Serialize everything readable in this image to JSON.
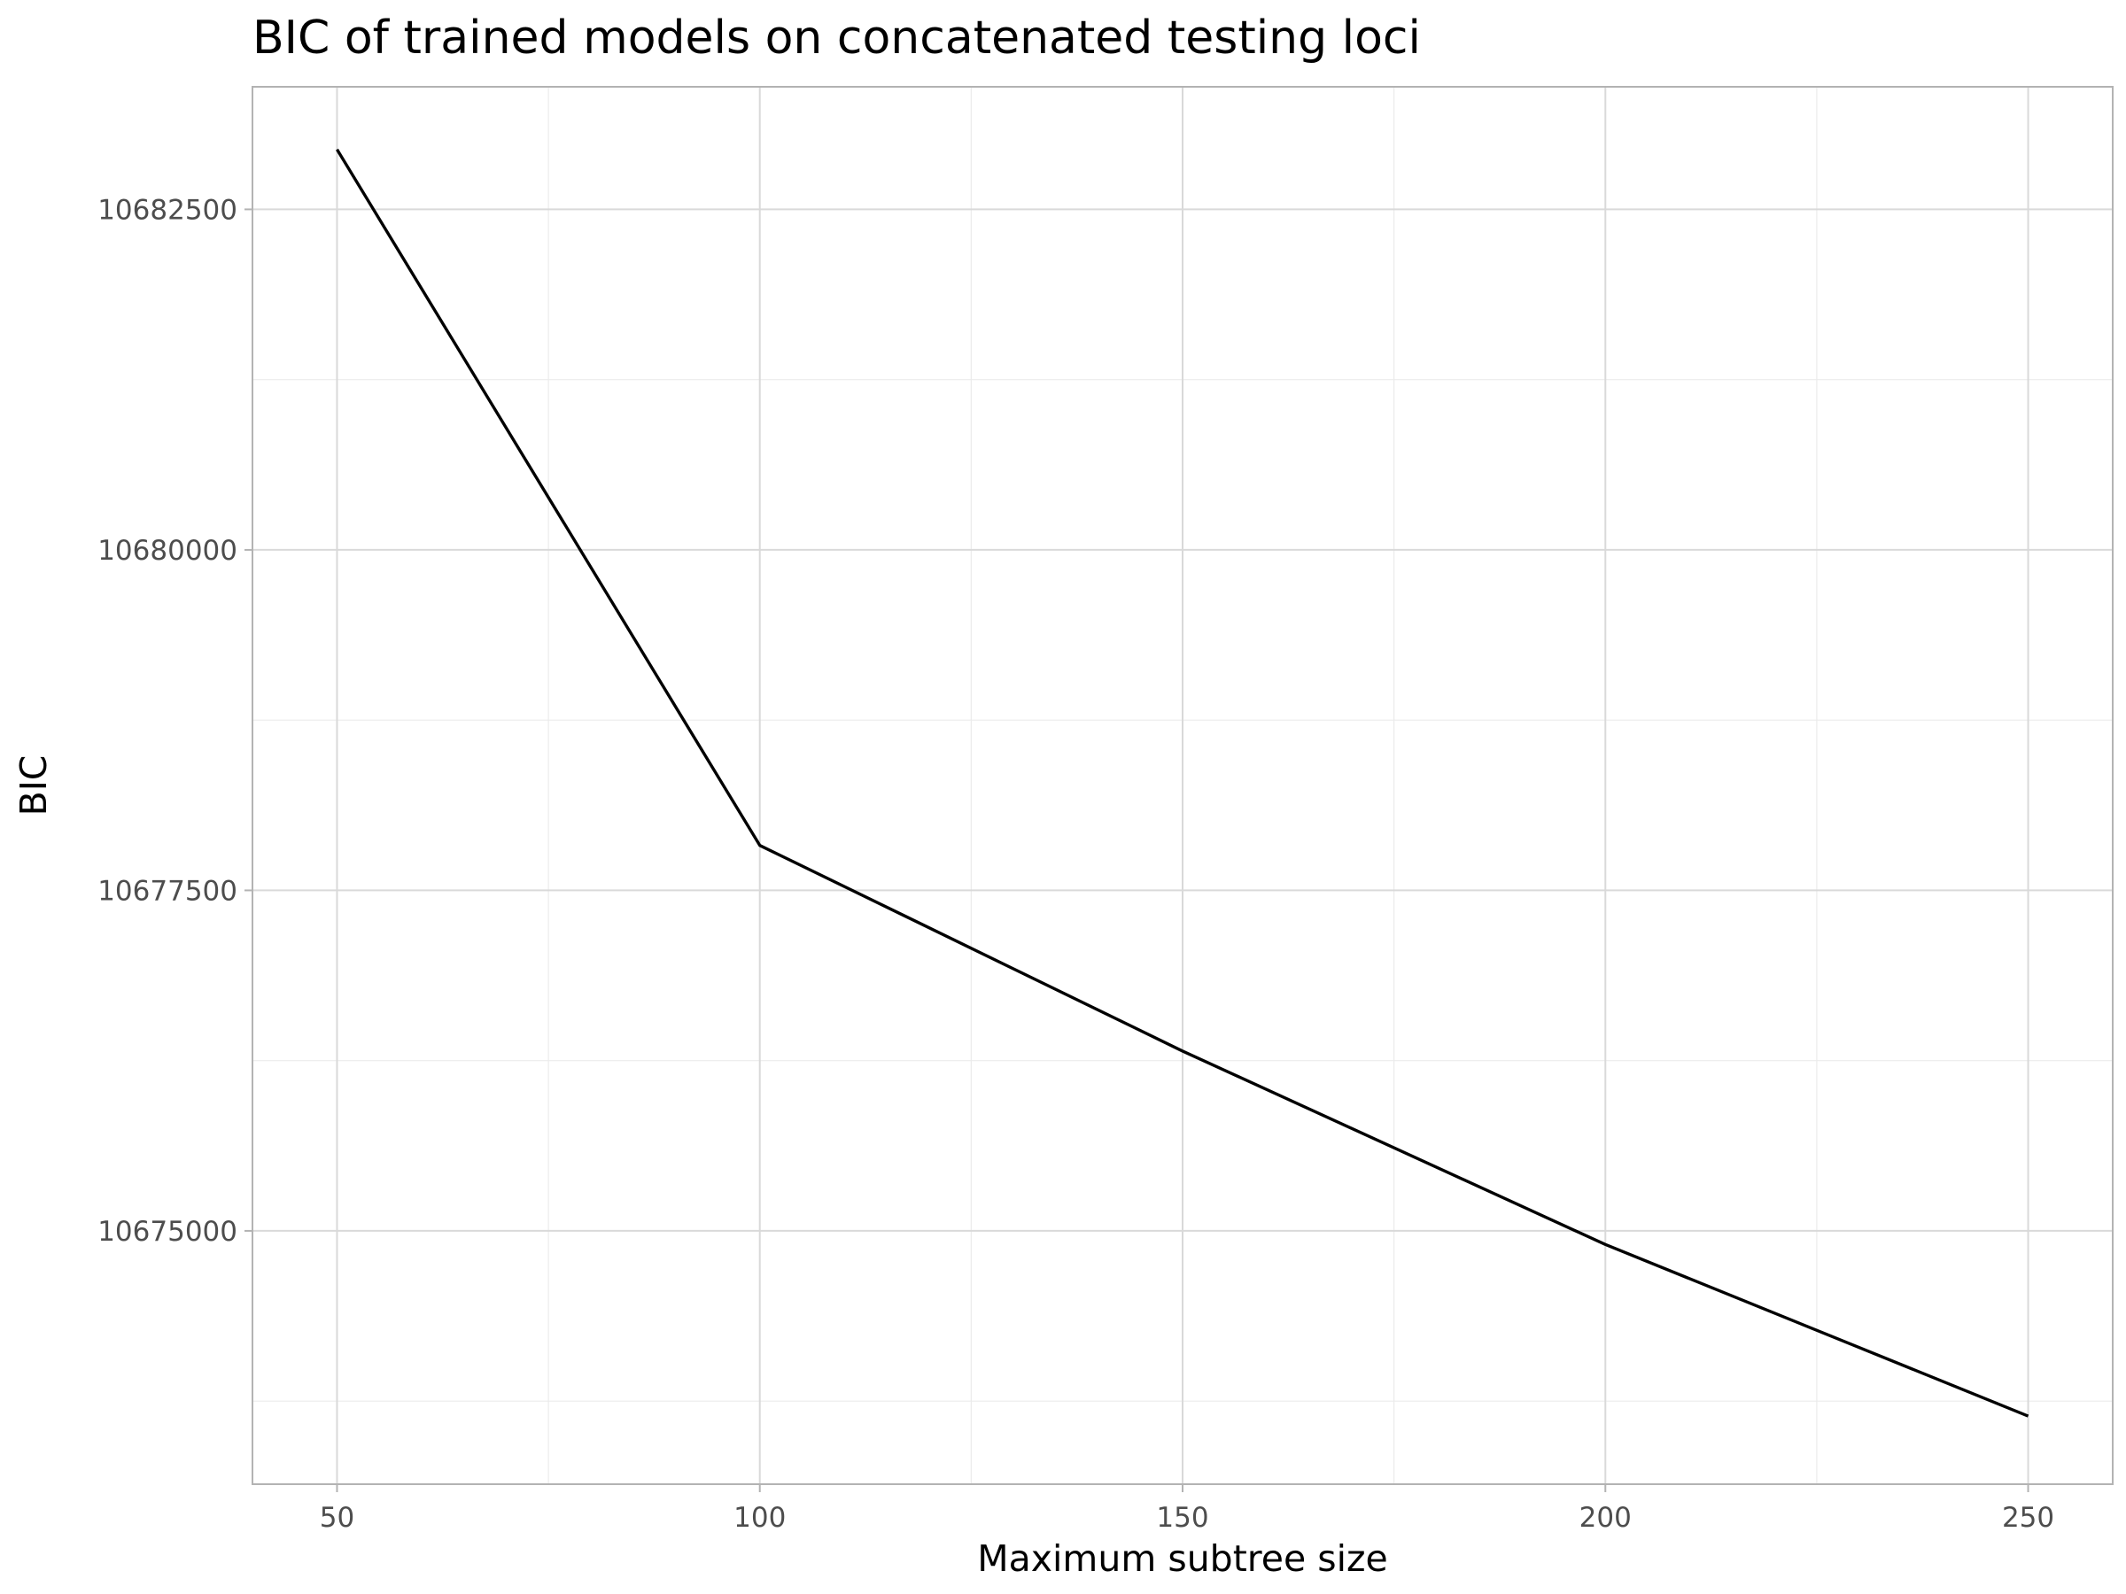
{
  "chart_data": {
    "type": "line",
    "title": "BIC of trained models on concatenated testing loci",
    "xlabel": "Maximum subtree size",
    "ylabel": "BIC",
    "x": [
      50,
      100,
      150,
      200,
      250
    ],
    "values": [
      10682940,
      10677830,
      10676320,
      10674900,
      10673640
    ],
    "xlim": [
      40,
      260
    ],
    "ylim": [
      10673140,
      10683400
    ],
    "xticks": [
      50,
      100,
      150,
      200,
      250
    ],
    "yticks": [
      10675000,
      10677500,
      10680000,
      10682500
    ],
    "xticklabels": [
      "50",
      "100",
      "150",
      "200",
      "250"
    ],
    "yticklabels": [
      "10675000",
      "10677500",
      "10680000",
      "10682500"
    ],
    "grid": true,
    "line_color": "#000000"
  }
}
